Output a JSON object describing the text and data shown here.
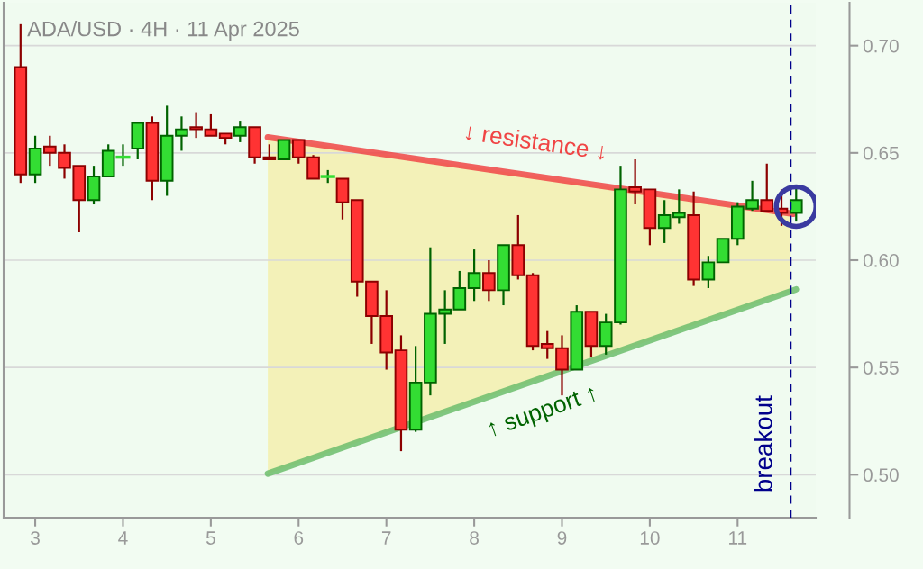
{
  "chart_data": {
    "type": "candlestick",
    "title": "ADA/USD · 4H · 11 Apr 2025",
    "x": [
      2.833,
      3,
      3.167,
      3.333,
      3.5,
      3.667,
      3.833,
      4,
      4.167,
      4.333,
      4.5,
      4.667,
      4.833,
      5,
      5.167,
      5.333,
      5.5,
      5.667,
      5.833,
      6,
      6.167,
      6.333,
      6.5,
      6.667,
      6.833,
      7,
      7.167,
      7.333,
      7.5,
      7.667,
      7.833,
      8,
      8.167,
      8.333,
      8.5,
      8.667,
      8.833,
      9,
      9.167,
      9.333,
      9.5,
      9.667,
      9.833,
      10,
      10.167,
      10.333,
      10.5,
      10.667,
      10.833,
      11,
      11.167,
      11.333,
      11.5,
      11.667
    ],
    "ohlc": [
      [
        0.69,
        0.71,
        0.636,
        0.64
      ],
      [
        0.64,
        0.658,
        0.636,
        0.652
      ],
      [
        0.653,
        0.658,
        0.644,
        0.65
      ],
      [
        0.65,
        0.654,
        0.638,
        0.643
      ],
      [
        0.644,
        0.644,
        0.613,
        0.628
      ],
      [
        0.628,
        0.644,
        0.626,
        0.639
      ],
      [
        0.639,
        0.654,
        0.639,
        0.651
      ],
      [
        0.648,
        0.654,
        0.644,
        0.648
      ],
      [
        0.652,
        0.664,
        0.647,
        0.664
      ],
      [
        0.664,
        0.667,
        0.628,
        0.637
      ],
      [
        0.637,
        0.672,
        0.63,
        0.658
      ],
      [
        0.658,
        0.667,
        0.651,
        0.661
      ],
      [
        0.662,
        0.669,
        0.657,
        0.661
      ],
      [
        0.661,
        0.668,
        0.658,
        0.658
      ],
      [
        0.659,
        0.659,
        0.654,
        0.657
      ],
      [
        0.658,
        0.665,
        0.655,
        0.662
      ],
      [
        0.662,
        0.662,
        0.645,
        0.648
      ],
      [
        0.648,
        0.654,
        0.647,
        0.647
      ],
      [
        0.647,
        0.656,
        0.647,
        0.656
      ],
      [
        0.656,
        0.656,
        0.645,
        0.648
      ],
      [
        0.648,
        0.649,
        0.638,
        0.638
      ],
      [
        0.639,
        0.642,
        0.636,
        0.639
      ],
      [
        0.638,
        0.638,
        0.619,
        0.627
      ],
      [
        0.628,
        0.628,
        0.583,
        0.59
      ],
      [
        0.59,
        0.59,
        0.561,
        0.574
      ],
      [
        0.574,
        0.586,
        0.549,
        0.557
      ],
      [
        0.558,
        0.565,
        0.511,
        0.521
      ],
      [
        0.521,
        0.56,
        0.52,
        0.543
      ],
      [
        0.543,
        0.606,
        0.537,
        0.575
      ],
      [
        0.575,
        0.586,
        0.561,
        0.577
      ],
      [
        0.577,
        0.595,
        0.577,
        0.587
      ],
      [
        0.587,
        0.605,
        0.581,
        0.594
      ],
      [
        0.594,
        0.6,
        0.581,
        0.586
      ],
      [
        0.586,
        0.607,
        0.579,
        0.607
      ],
      [
        0.607,
        0.621,
        0.591,
        0.593
      ],
      [
        0.593,
        0.594,
        0.558,
        0.56
      ],
      [
        0.561,
        0.567,
        0.554,
        0.559
      ],
      [
        0.559,
        0.565,
        0.537,
        0.549
      ],
      [
        0.549,
        0.579,
        0.549,
        0.576
      ],
      [
        0.576,
        0.576,
        0.555,
        0.56
      ],
      [
        0.56,
        0.575,
        0.556,
        0.571
      ],
      [
        0.571,
        0.644,
        0.57,
        0.633
      ],
      [
        0.634,
        0.647,
        0.626,
        0.632
      ],
      [
        0.633,
        0.633,
        0.607,
        0.615
      ],
      [
        0.615,
        0.628,
        0.608,
        0.621
      ],
      [
        0.62,
        0.633,
        0.617,
        0.622
      ],
      [
        0.621,
        0.632,
        0.588,
        0.591
      ],
      [
        0.591,
        0.602,
        0.587,
        0.599
      ],
      [
        0.599,
        0.61,
        0.599,
        0.61
      ],
      [
        0.61,
        0.627,
        0.607,
        0.625
      ],
      [
        0.624,
        0.637,
        0.623,
        0.628
      ],
      [
        0.628,
        0.645,
        0.623,
        0.623
      ],
      [
        0.624,
        0.633,
        0.616,
        0.622
      ],
      [
        0.622,
        0.634,
        0.618,
        0.628
      ]
    ],
    "colors": [
      "#ff3333",
      "#33dd33",
      "#ff3333",
      "#ff3333",
      "#ff3333",
      "#33dd33",
      "#33dd33",
      "#33dd33",
      "#33dd33",
      "#ff3333",
      "#33dd33",
      "#33dd33",
      "#ff3333",
      "#ff3333",
      "#ff3333",
      "#33dd33",
      "#ff3333",
      "#ff3333",
      "#33dd33",
      "#ff3333",
      "#ff3333",
      "#33dd33",
      "#ff3333",
      "#ff3333",
      "#ff3333",
      "#ff3333",
      "#ff3333",
      "#33dd33",
      "#33dd33",
      "#33dd33",
      "#33dd33",
      "#33dd33",
      "#ff3333",
      "#33dd33",
      "#ff3333",
      "#ff3333",
      "#ff3333",
      "#ff3333",
      "#33dd33",
      "#ff3333",
      "#33dd33",
      "#33dd33",
      "#ff3333",
      "#ff3333",
      "#33dd33",
      "#33dd33",
      "#ff3333",
      "#33dd33",
      "#33dd33",
      "#33dd33",
      "#33dd33",
      "#ff3333",
      "#ff3333",
      "#33dd33"
    ],
    "series": [
      {
        "type": "line",
        "name": "↓ resistance ↓",
        "color": "#f04545",
        "x": [
          5.649,
          11.635
        ],
        "values": [
          0.6573,
          0.6216
        ]
      },
      {
        "type": "line",
        "name": "↑ support ↑",
        "color": "#6cbd6c",
        "x": [
          5.649,
          11.665
        ],
        "values": [
          0.5005,
          0.5864
        ]
      }
    ],
    "ref_lines": [
      {
        "axis": "x",
        "value": 11.604,
        "label": "breakout",
        "color": "#00008b",
        "line_style": "dashed"
      }
    ],
    "xlim": [
      2.64,
      11.89
    ],
    "xticks": [
      3,
      4,
      5,
      6,
      7,
      8,
      9,
      10,
      11
    ],
    "ylim": [
      0.48,
      0.72
    ],
    "yticks": [
      {
        "value": 0.5,
        "label": "0.50"
      },
      {
        "value": 0.55,
        "label": "0.55"
      },
      {
        "value": 0.6,
        "label": "0.60"
      },
      {
        "value": 0.65,
        "label": "0.65"
      },
      {
        "value": 0.7,
        "label": "0.70"
      }
    ],
    "grid": "y",
    "legend": false
  }
}
